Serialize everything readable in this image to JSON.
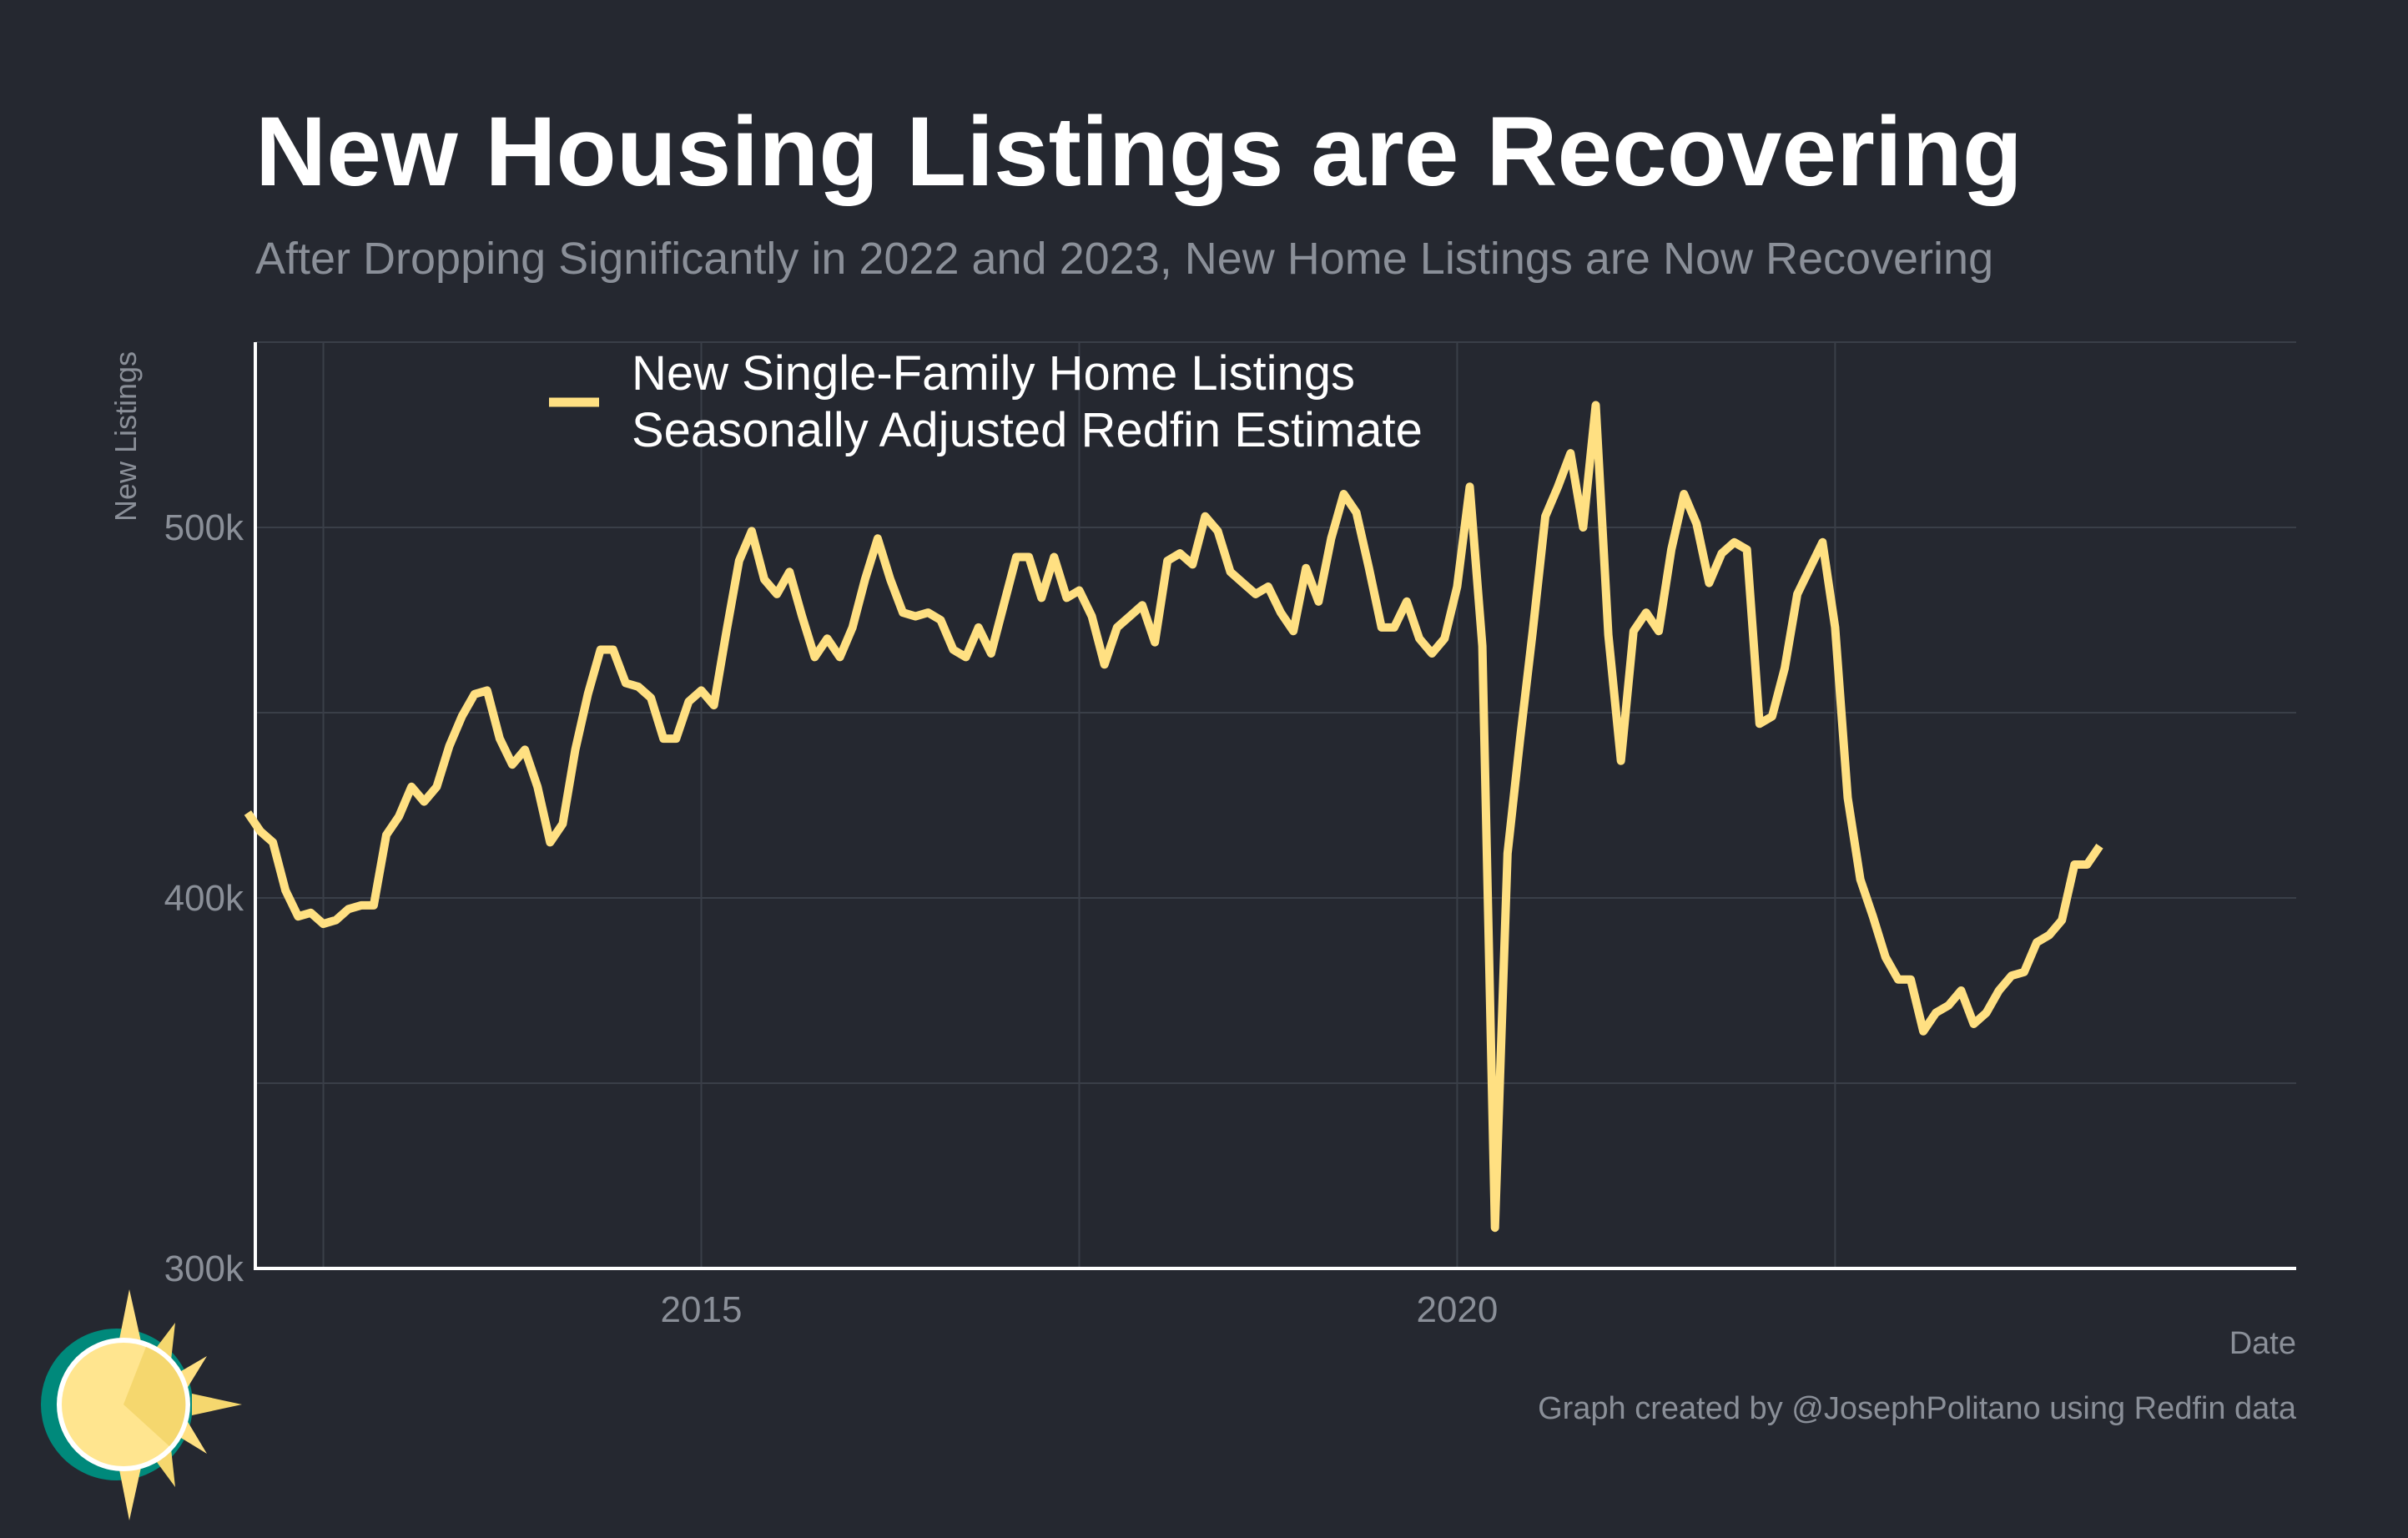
{
  "chart_data": {
    "type": "line",
    "title": "New Housing Listings are Recovering",
    "subtitle": "After Dropping Significantly in 2022 and 2023, New Home Listings are Now Recovering",
    "xlabel": "Date",
    "ylabel": "New Listings",
    "caption": "Graph created by @JosephPolitano using Redfin data",
    "xlim": [
      2012.05,
      2025.55
    ],
    "ylim": [
      300000,
      550000
    ],
    "x_ticks": [
      {
        "value": 2015,
        "label": "2015"
      },
      {
        "value": 2020,
        "label": "2020"
      }
    ],
    "x_minor_gridlines": [
      2012.5,
      2017.5,
      2022.5
    ],
    "y_ticks": [
      {
        "value": 300000,
        "label": "300k"
      },
      {
        "value": 400000,
        "label": "400k"
      },
      {
        "value": 500000,
        "label": "500k"
      }
    ],
    "y_minor_gridlines": [
      350000,
      450000,
      550000
    ],
    "grid": true,
    "legend_position": "top-left",
    "legend_lines": [
      "New Single-Family Home Listings",
      "Seasonally Adjusted Redfin Estimate"
    ],
    "series": [
      {
        "color": "#ffe082",
        "x_start": 2012.0,
        "x_step_months": 1,
        "values": [
          423000,
          418000,
          415000,
          402000,
          395000,
          396000,
          393000,
          394000,
          397000,
          398000,
          398000,
          417000,
          422000,
          430000,
          426000,
          430000,
          441000,
          449000,
          455000,
          456000,
          443000,
          436000,
          440000,
          430000,
          415000,
          420000,
          440000,
          455000,
          467000,
          467000,
          458000,
          457000,
          454000,
          443000,
          443000,
          453000,
          456000,
          452000,
          472000,
          491000,
          499000,
          486000,
          482000,
          488000,
          476000,
          465000,
          470000,
          465000,
          473000,
          486000,
          497000,
          486000,
          477000,
          476000,
          477000,
          475000,
          467000,
          465000,
          473000,
          466000,
          479000,
          492000,
          492000,
          481000,
          492000,
          481000,
          483000,
          476000,
          463000,
          473000,
          476000,
          479000,
          469000,
          491000,
          493000,
          490000,
          503000,
          499000,
          488000,
          485000,
          482000,
          484000,
          477000,
          472000,
          489000,
          480000,
          497000,
          509000,
          504000,
          489000,
          473000,
          473000,
          480000,
          470000,
          466000,
          470000,
          484000,
          511000,
          468000,
          311000,
          412000,
          443000,
          472000,
          503000,
          511000,
          520000,
          500000,
          533000,
          471000,
          437000,
          472000,
          477000,
          472000,
          494000,
          509000,
          501000,
          485000,
          493000,
          496000,
          494000,
          447000,
          449000,
          462000,
          482000,
          489000,
          496000,
          473000,
          427000,
          405000,
          395000,
          384000,
          378000,
          378000,
          364000,
          369000,
          371000,
          375000,
          366000,
          369000,
          375000,
          379000,
          380000,
          388000,
          390000,
          394000,
          409000,
          409000,
          414000
        ]
      }
    ]
  },
  "legend": {
    "line1": "New Single-Family Home Listings",
    "line2": "Seasonally Adjusted Redfin Estimate"
  }
}
